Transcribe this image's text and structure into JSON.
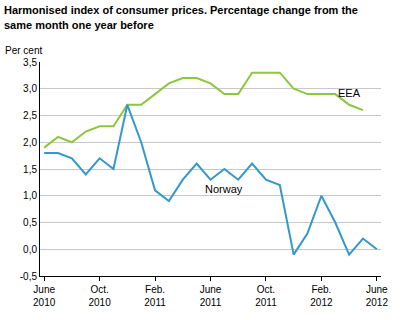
{
  "chart_data": {
    "type": "line",
    "title": "Harmonised index of consumer prices. Percentage change from the same month one year before",
    "y_label": "Per cent",
    "categories": [
      "June 2010",
      null,
      null,
      null,
      "Oct. 2010",
      null,
      null,
      null,
      "Feb. 2011",
      null,
      null,
      null,
      "June 2011",
      null,
      null,
      null,
      "Oct. 2011",
      null,
      null,
      null,
      "Feb. 2012",
      null,
      null,
      null,
      "June 2012"
    ],
    "series": [
      {
        "name": "EEA",
        "color": "#8dc63f",
        "values": [
          1.9,
          2.1,
          2.0,
          2.2,
          2.3,
          2.3,
          2.7,
          2.7,
          2.9,
          3.1,
          3.2,
          3.2,
          3.1,
          2.9,
          2.9,
          3.3,
          3.3,
          3.3,
          3.0,
          2.9,
          2.9,
          2.9,
          2.7,
          2.6,
          null
        ]
      },
      {
        "name": "Norway",
        "color": "#3399cc",
        "values": [
          1.8,
          1.8,
          1.7,
          1.4,
          1.7,
          1.5,
          2.7,
          2.0,
          1.1,
          0.9,
          1.3,
          1.6,
          1.3,
          1.5,
          1.3,
          1.6,
          1.3,
          1.2,
          -0.1,
          0.3,
          1.0,
          0.5,
          -0.1,
          0.2,
          0.0
        ]
      }
    ],
    "ylim": [
      -0.5,
      3.5
    ],
    "yticks": [
      {
        "value": -0.5,
        "label": "-0,5"
      },
      {
        "value": 0,
        "label": "0,0"
      },
      {
        "value": 0.5,
        "label": "0,5"
      },
      {
        "value": 1,
        "label": "1,0"
      },
      {
        "value": 1.5,
        "label": "1,5"
      },
      {
        "value": 2,
        "label": "2,0"
      },
      {
        "value": 2.5,
        "label": "2,5"
      },
      {
        "value": 3,
        "label": "3,0"
      },
      {
        "value": 3.5,
        "label": "3,5"
      }
    ],
    "grid": true
  }
}
